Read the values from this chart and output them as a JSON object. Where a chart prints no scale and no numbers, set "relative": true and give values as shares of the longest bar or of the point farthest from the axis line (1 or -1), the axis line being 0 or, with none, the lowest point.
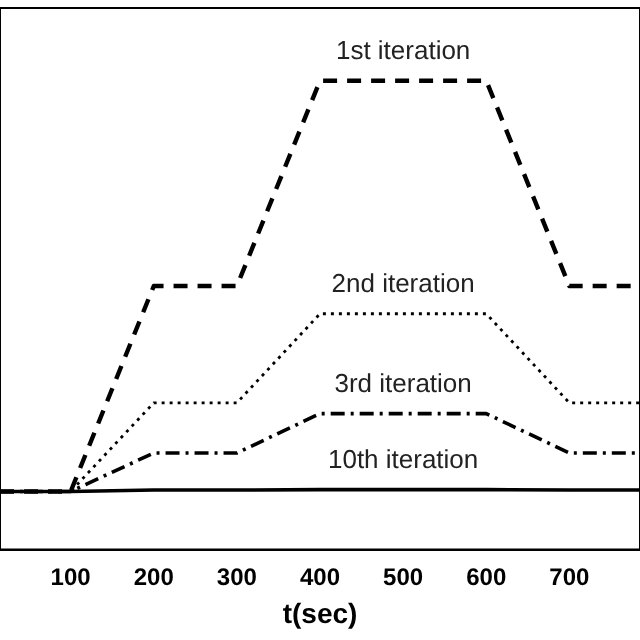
{
  "chart_data": {
    "type": "line",
    "relative": true,
    "xlabel": "t(sec)",
    "xlim": [
      15,
      785
    ],
    "xticks": [
      100,
      200,
      300,
      400,
      500,
      600,
      700
    ],
    "grid": false,
    "legend": false,
    "marker": "none",
    "x": [
      15,
      100,
      200,
      300,
      400,
      600,
      700,
      785
    ],
    "series": [
      {
        "name": "1st iteration",
        "color": "#000000",
        "line_style": "dashed",
        "values": [
          0.124,
          0.124,
          0.562,
          0.562,
          1,
          1,
          0.562,
          0.562
        ]
      },
      {
        "name": "2nd iteration",
        "color": "#000000",
        "line_style": "dotted",
        "values": [
          0.124,
          0.124,
          0.313,
          0.313,
          0.503,
          0.503,
          0.313,
          0.313
        ]
      },
      {
        "name": "3rd iteration",
        "color": "#000000",
        "line_style": "dashdot",
        "values": [
          0.124,
          0.124,
          0.206,
          0.206,
          0.29,
          0.29,
          0.206,
          0.206
        ]
      },
      {
        "name": "10th iteration",
        "color": "#000000",
        "line_style": "solid",
        "values": [
          0.124,
          0.124,
          0.127,
          0.127,
          0.128,
          0.128,
          0.127,
          0.127
        ]
      }
    ]
  }
}
